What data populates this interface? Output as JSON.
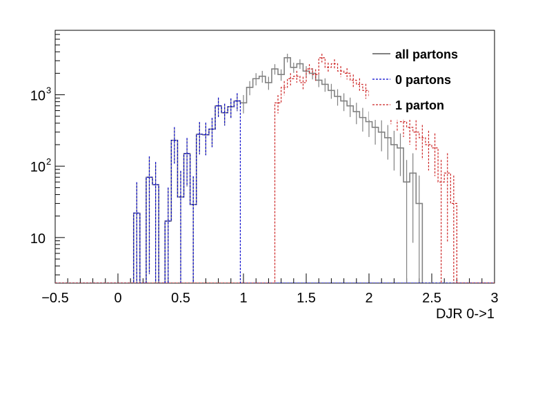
{
  "chart_data": {
    "type": "step",
    "title": "",
    "xlabel": "DJR 0->1",
    "ylabel": "",
    "xlim": [
      -0.5,
      3.0
    ],
    "ylim": [
      2.3,
      8000
    ],
    "yscale": "log",
    "bin_width": 0.05,
    "x_ticks": [
      {
        "value": -0.5,
        "label": "−0.5"
      },
      {
        "value": 0,
        "label": "0"
      },
      {
        "value": 0.5,
        "label": "0.5"
      },
      {
        "value": 1,
        "label": "1"
      },
      {
        "value": 1.5,
        "label": "1.5"
      },
      {
        "value": 2,
        "label": "2"
      },
      {
        "value": 2.5,
        "label": "2.5"
      },
      {
        "value": 3,
        "label": "3"
      }
    ],
    "y_ticks": [
      {
        "value": 10,
        "label": "10",
        "sup": ""
      },
      {
        "value": 100,
        "label": "10",
        "sup": "2"
      },
      {
        "value": 1000,
        "label": "10",
        "sup": "3"
      }
    ],
    "legend": {
      "position": "top-right",
      "entries": [
        {
          "label": "all partons",
          "color": "#808080",
          "style": "solid"
        },
        {
          "label": "0 partons",
          "color": "#0000cc",
          "style": "dashed"
        },
        {
          "label": "1 parton",
          "color": "#cc2222",
          "style": "dashed"
        }
      ]
    },
    "series": [
      {
        "name": "0 partons",
        "color": "#0000cc",
        "x_start": 0.125,
        "values": [
          22,
          0,
          70,
          55,
          0,
          17,
          230,
          37,
          150,
          29,
          280,
          275,
          330,
          700,
          560,
          680,
          820
        ]
      },
      {
        "name": "1 parton",
        "color": "#cc2222",
        "x_start": 1.25,
        "values": [
          770,
          1270,
          1680,
          1820,
          1480,
          2300,
          1920,
          3300,
          2420,
          2720,
          2150,
          2000,
          1600,
          1400,
          1150,
          950,
          820,
          700,
          580,
          480,
          420,
          350,
          300,
          250,
          200,
          180,
          60,
          80,
          30
        ]
      },
      {
        "name": "all partons",
        "color": "#808080",
        "x_start": 0.125,
        "values": [
          22,
          0,
          70,
          55,
          0,
          17,
          230,
          37,
          150,
          29,
          280,
          275,
          330,
          700,
          560,
          680,
          820,
          770,
          1270,
          1680,
          1820,
          1480,
          2300,
          1920,
          3300,
          2420,
          2720,
          2150,
          2000,
          1600,
          1400,
          1150,
          950,
          820,
          700,
          580,
          480,
          420,
          350,
          300,
          250,
          200,
          180,
          60,
          80,
          30
        ]
      }
    ]
  }
}
